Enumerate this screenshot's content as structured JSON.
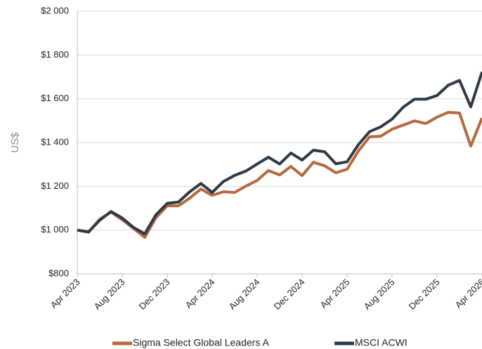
{
  "chart_data": {
    "type": "line",
    "y_label": "US$",
    "categories": [
      "Apr 2023",
      null,
      null,
      null,
      "Aug 2023",
      null,
      null,
      null,
      "Dec 2023",
      null,
      null,
      null,
      "Apr 2024",
      null,
      null,
      null,
      "Aug 2024",
      null,
      null,
      null,
      "Dec 2024",
      null,
      null,
      null,
      "Apr 2025",
      null,
      null,
      null,
      "Aug 2025",
      null,
      null,
      null,
      "Dec 2025",
      null,
      null,
      null,
      "Apr 2026"
    ],
    "series": [
      {
        "name": "Sigma Select Global Leaders A",
        "color": "#b5693e",
        "values": [
          1000,
          990,
          1050,
          1082,
          1047,
          1008,
          967,
          1057,
          1111,
          1111,
          1146,
          1188,
          1159,
          1175,
          1172,
          1201,
          1227,
          1272,
          1252,
          1291,
          1249,
          1310,
          1294,
          1262,
          1278,
          1361,
          1426,
          1429,
          1461,
          1480,
          1499,
          1487,
          1516,
          1538,
          1535,
          1384,
          1512
        ]
      },
      {
        "name": "MSCI ACWI",
        "color": "#2e3a45",
        "values": [
          1000,
          992,
          1045,
          1085,
          1055,
          1012,
          983,
          1070,
          1122,
          1128,
          1175,
          1213,
          1172,
          1222,
          1250,
          1270,
          1302,
          1333,
          1302,
          1352,
          1320,
          1365,
          1358,
          1303,
          1312,
          1390,
          1450,
          1472,
          1507,
          1562,
          1598,
          1598,
          1615,
          1662,
          1684,
          1563,
          1722
        ]
      }
    ],
    "ylim": [
      800,
      2000
    ],
    "yticks": [
      {
        "value": 800,
        "label": "$800"
      },
      {
        "value": 1000,
        "label": "$1 000"
      },
      {
        "value": 1200,
        "label": "$1 200"
      },
      {
        "value": 1400,
        "label": "$1 400"
      },
      {
        "value": 1600,
        "label": "$1 600"
      },
      {
        "value": 1800,
        "label": "$1 800"
      },
      {
        "value": 2000,
        "label": "$2 000"
      }
    ],
    "grid": true,
    "legend": "bottom"
  }
}
